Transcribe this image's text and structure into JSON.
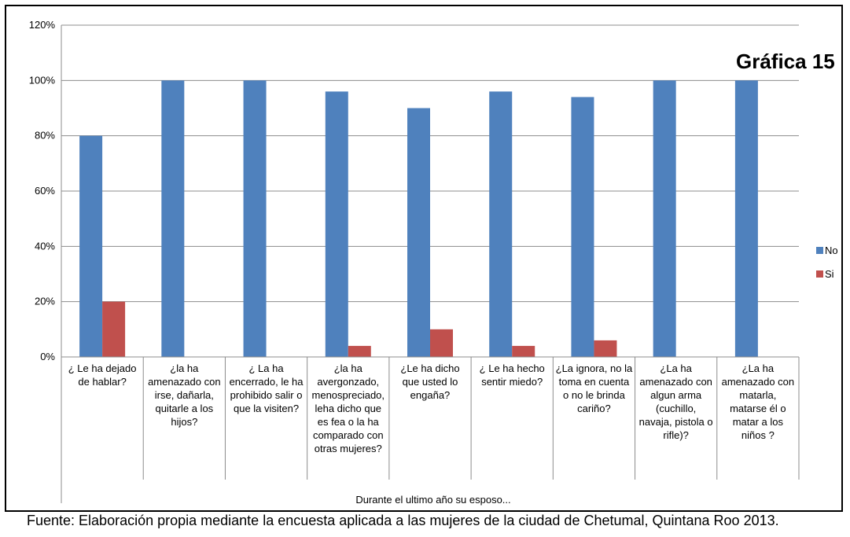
{
  "caption": "Fuente: Elaboración propia  mediante la encuesta aplicada a las mujeres de la ciudad de Chetumal, Quintana Roo 2013.",
  "chart_data": {
    "type": "bar",
    "title": "Gráfica 15",
    "xlabel": "Durante el ultimo año su esposo...",
    "ylabel": "",
    "ylim": [
      0,
      120
    ],
    "yticks": [
      "0%",
      "20%",
      "40%",
      "60%",
      "80%",
      "100%",
      "120%"
    ],
    "grid": true,
    "legend_position": "right",
    "categories": [
      "¿ Le ha dejado\nde hablar?",
      "¿la ha\namenazado con\nirse, dañarla,\nquitarle a los\nhijos?",
      "¿ La ha\nencerrado, le ha\nprohibido salir o\nque la visiten?",
      "¿la ha\navergonzado,\nmenospreciado,\nleha dicho que\nes fea o la ha\ncomparado con\notras mujeres?",
      "¿Le ha dicho\nque usted lo\nengaña?",
      "¿ Le ha hecho\nsentir miedo?",
      "¿La ignora, no la\ntoma en cuenta\no no le brinda\ncariño?",
      "¿La ha\namenazado con\nalgun arma\n(cuchillo,\nnavaja, pistola o\nrifle)?",
      "¿La ha\namenazado con\nmatarla,\nmatarse él o\nmatar a los\nniños ?"
    ],
    "series": [
      {
        "name": "No",
        "color": "#4F81BD",
        "values": [
          80,
          100,
          100,
          96,
          90,
          96,
          94,
          100,
          100
        ]
      },
      {
        "name": "Si",
        "color": "#C0504D",
        "values": [
          20,
          0,
          0,
          4,
          10,
          4,
          6,
          0,
          0
        ]
      }
    ]
  }
}
